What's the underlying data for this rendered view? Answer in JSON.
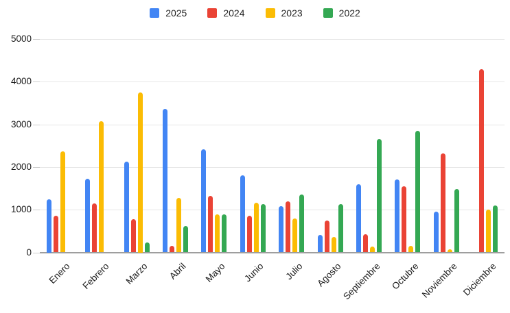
{
  "chart_data": {
    "type": "bar",
    "title": "",
    "xlabel": "",
    "ylabel": "",
    "categories": [
      "Enero",
      "Febrero",
      "Marzo",
      "Abril",
      "Mayo",
      "Junio",
      "Julio",
      "Agosto",
      "Septiembre",
      "Octubre",
      "Noviembre",
      "Diciembre"
    ],
    "series": [
      {
        "name": "2025",
        "color": "#4285F4",
        "values": [
          1250,
          1720,
          2130,
          3370,
          2410,
          1800,
          1090,
          410,
          1600,
          1710,
          950,
          null
        ]
      },
      {
        "name": "2024",
        "color": "#EA4335",
        "values": [
          860,
          1150,
          780,
          150,
          1320,
          860,
          1200,
          750,
          430,
          1550,
          2320,
          4300
        ]
      },
      {
        "name": "2023",
        "color": "#FBBC04",
        "values": [
          2370,
          3070,
          3750,
          1280,
          890,
          1160,
          800,
          360,
          130,
          150,
          70,
          1000
        ]
      },
      {
        "name": "2022",
        "color": "#34A853",
        "values": [
          null,
          null,
          240,
          610,
          890,
          1130,
          1350,
          1130,
          2660,
          2850,
          1490,
          1100
        ]
      }
    ],
    "ylim": [
      0,
      5000
    ],
    "yticks": [
      0,
      1000,
      2000,
      3000,
      4000,
      5000
    ],
    "grid": true,
    "legend_position": "top",
    "colors": {
      "gridline": "#e6e6e6",
      "baseline": "#9e9e9e",
      "axis_text": "#1a1a1a",
      "background": "#ffffff"
    }
  }
}
